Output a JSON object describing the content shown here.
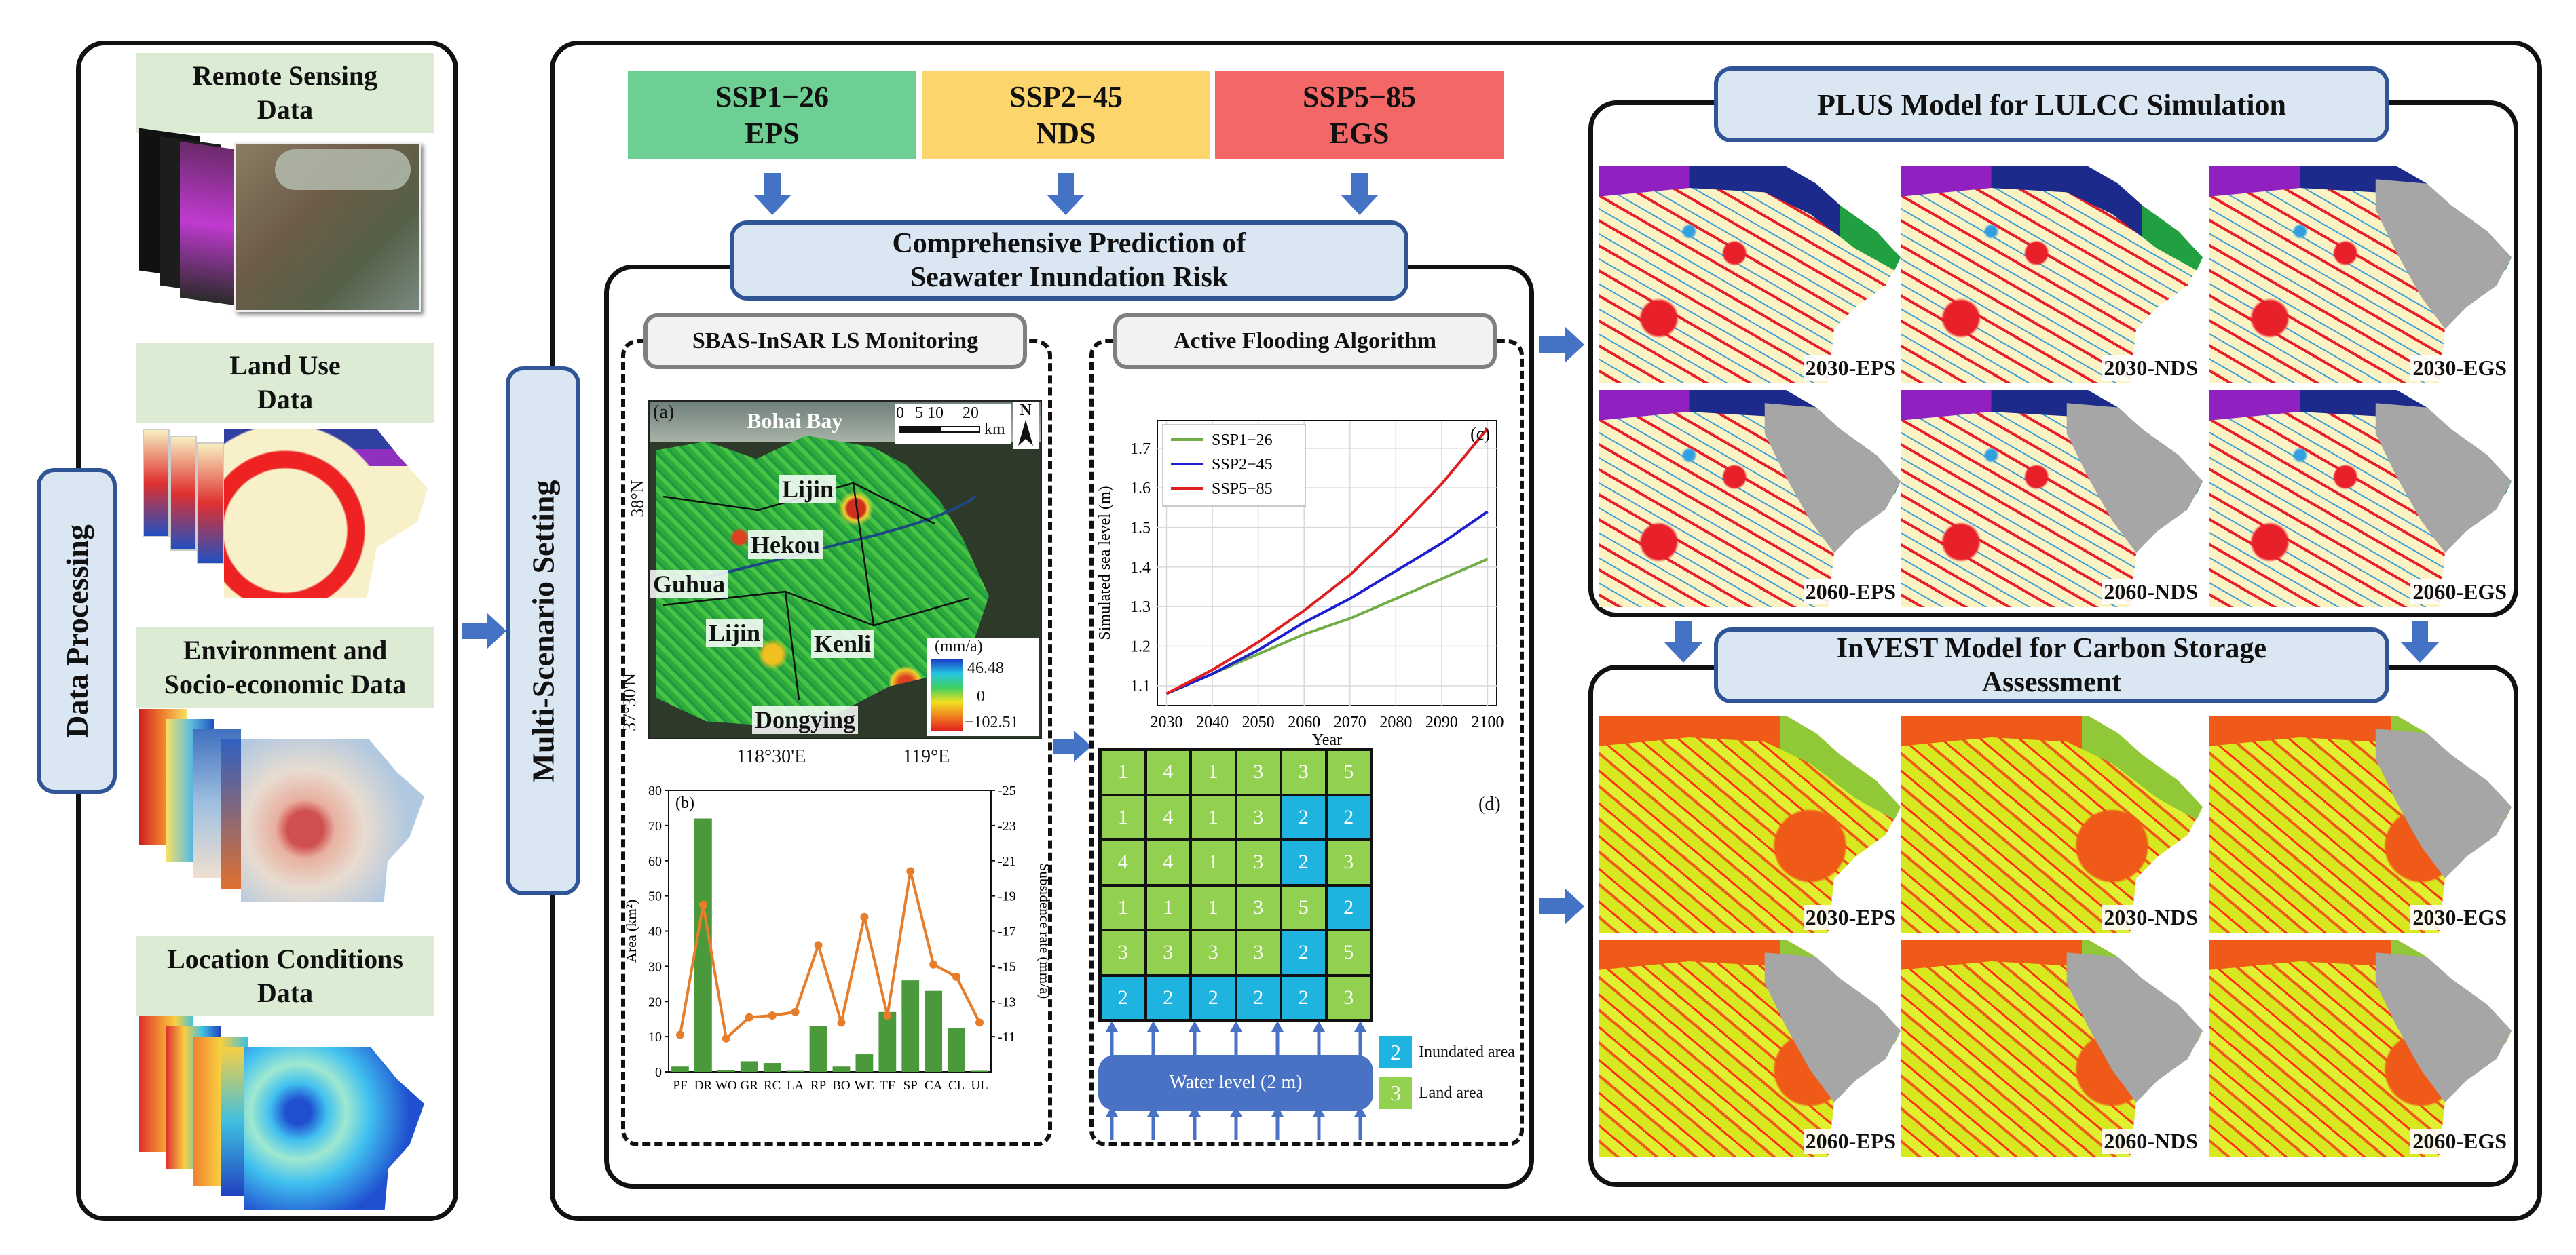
{
  "data_processing": {
    "title": "Data Processing",
    "items": [
      {
        "label": "Remote Sensing\nData"
      },
      {
        "label": "Land Use\nData"
      },
      {
        "label": "Environment and\nSocio-economic Data"
      },
      {
        "label": "Location Conditions\nData"
      }
    ]
  },
  "multi_scenario": {
    "title": "Multi-Scenario Setting"
  },
  "scenarios": [
    {
      "code": "SSP1−26",
      "name": "EPS",
      "color": "#6dcf94"
    },
    {
      "code": "SSP2−45",
      "name": "NDS",
      "color": "#fcd66c"
    },
    {
      "code": "SSP5−85",
      "name": "EGS",
      "color": "#f46767"
    }
  ],
  "prediction": {
    "title": "Comprehensive Prediction of\nSeawater Inundation Risk",
    "sbas_label": "SBAS-InSAR LS Monitoring",
    "flood_label": "Active Flooding Algorithm"
  },
  "map_a": {
    "panel": "(a)",
    "bay": "Bohai Bay",
    "places": [
      "Lijin",
      "Hekou",
      "Guhua",
      "Lijin",
      "Kenli",
      "Dongying"
    ],
    "scale_ticks": [
      "0",
      "5",
      "10",
      "20"
    ],
    "scale_unit": "km",
    "north": "N",
    "lat_labels": [
      "38°N",
      "37°30'N"
    ],
    "lon_labels": [
      "118°30'E",
      "119°E"
    ],
    "legend_unit": "(mm/a)",
    "legend_values": [
      "46.48",
      "0",
      "−102.51"
    ]
  },
  "flood_grid": {
    "panel": "(d)",
    "cells": [
      [
        1,
        4,
        1,
        3,
        3,
        5
      ],
      [
        1,
        4,
        1,
        3,
        2,
        2
      ],
      [
        4,
        4,
        1,
        3,
        2,
        3
      ],
      [
        1,
        1,
        1,
        3,
        5,
        2
      ],
      [
        3,
        3,
        3,
        3,
        2,
        5
      ],
      [
        2,
        2,
        2,
        2,
        2,
        3
      ]
    ],
    "inundated": [
      [
        0,
        0,
        0,
        0,
        0,
        0
      ],
      [
        0,
        0,
        0,
        0,
        1,
        1
      ],
      [
        0,
        0,
        0,
        0,
        1,
        0
      ],
      [
        0,
        0,
        0,
        0,
        0,
        1
      ],
      [
        0,
        0,
        0,
        0,
        1,
        0
      ],
      [
        1,
        1,
        1,
        1,
        1,
        0
      ]
    ],
    "water_label": "Water level (2 m)",
    "legend": [
      {
        "value": "2",
        "text": "Inundated area",
        "color": "#1fb4e0"
      },
      {
        "value": "3",
        "text": "Land area",
        "color": "#92d050"
      }
    ]
  },
  "plus": {
    "title": "PLUS Model for LULCC Simulation",
    "maps": [
      "2030-EPS",
      "2030-NDS",
      "2030-EGS",
      "2060-EPS",
      "2060-NDS",
      "2060-EGS"
    ]
  },
  "invest": {
    "title": "InVEST Model for Carbon Storage\nAssessment",
    "maps": [
      "2030-EPS",
      "2030-NDS",
      "2030-EGS",
      "2060-EPS",
      "2060-NDS",
      "2060-EGS"
    ]
  },
  "chart_data": [
    {
      "type": "line",
      "panel": "(c)",
      "title": "",
      "xlabel": "Year",
      "ylabel": "Simulated sea level (m)",
      "x": [
        2030,
        2040,
        2050,
        2060,
        2070,
        2080,
        2090,
        2100
      ],
      "xlim": [
        2028,
        2102
      ],
      "ylim": [
        1.05,
        1.77
      ],
      "yticks": [
        1.1,
        1.2,
        1.3,
        1.4,
        1.5,
        1.6,
        1.7
      ],
      "grid": true,
      "legend": "top-left",
      "series": [
        {
          "name": "SSP1−26",
          "color": "#70ad47",
          "values": [
            1.08,
            1.13,
            1.18,
            1.23,
            1.27,
            1.32,
            1.37,
            1.42
          ]
        },
        {
          "name": "SSP2−45",
          "color": "#1f1fcf",
          "values": [
            1.08,
            1.13,
            1.19,
            1.26,
            1.32,
            1.39,
            1.46,
            1.54
          ]
        },
        {
          "name": "SSP5−85",
          "color": "#e02020",
          "values": [
            1.08,
            1.14,
            1.21,
            1.29,
            1.38,
            1.49,
            1.61,
            1.75
          ]
        }
      ]
    },
    {
      "type": "bar",
      "panel": "(b)",
      "title": "",
      "xlabel": "",
      "ylabel": "Area (km²)",
      "y2label": "Subsidence rate (mm/a)",
      "categories": [
        "PF",
        "DR",
        "WO",
        "GR",
        "RC",
        "LA",
        "RP",
        "BO",
        "WE",
        "TF",
        "SP",
        "CA",
        "CL",
        "UL"
      ],
      "ylim": [
        0,
        80
      ],
      "yticks": [
        0,
        10,
        20,
        30,
        40,
        50,
        60,
        70,
        80
      ],
      "y2lim": [
        -9,
        -25
      ],
      "y2ticks": [
        -11,
        -13,
        -15,
        -17,
        -19,
        -21,
        -23,
        -25
      ],
      "series": [
        {
          "name": "Area",
          "type": "bar",
          "color": "#4a9a3c",
          "values": [
            1.5,
            72,
            0.5,
            3,
            2.5,
            0.3,
            13,
            1.5,
            5,
            17,
            26,
            23,
            12.5,
            0.3
          ]
        },
        {
          "name": "Subsidence rate",
          "type": "line",
          "color": "#e57d2b",
          "values": [
            -11.1,
            -18.5,
            -10.9,
            -12.1,
            -12.2,
            -12.4,
            -16.2,
            -11.8,
            -17.8,
            -12.2,
            -20.4,
            -15.1,
            -14.4,
            -11.8
          ]
        }
      ]
    }
  ]
}
